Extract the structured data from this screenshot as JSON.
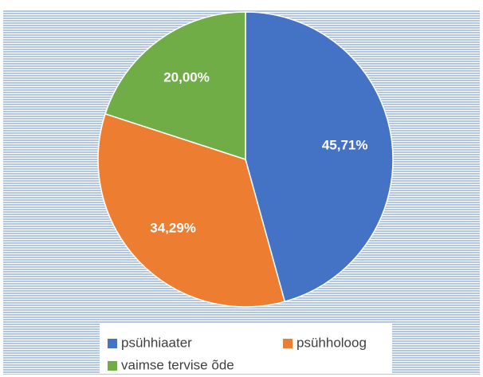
{
  "chart_data": {
    "type": "pie",
    "categories": [
      "psühhiaater",
      "psühholoog",
      "vaimse tervise õde"
    ],
    "values": [
      45.71,
      34.29,
      20.0
    ],
    "value_labels": [
      "45,71%",
      "34,29%",
      "20,00%"
    ],
    "colors": [
      "#4472c4",
      "#ed7d31",
      "#70ad47"
    ],
    "legend": "bottom"
  }
}
